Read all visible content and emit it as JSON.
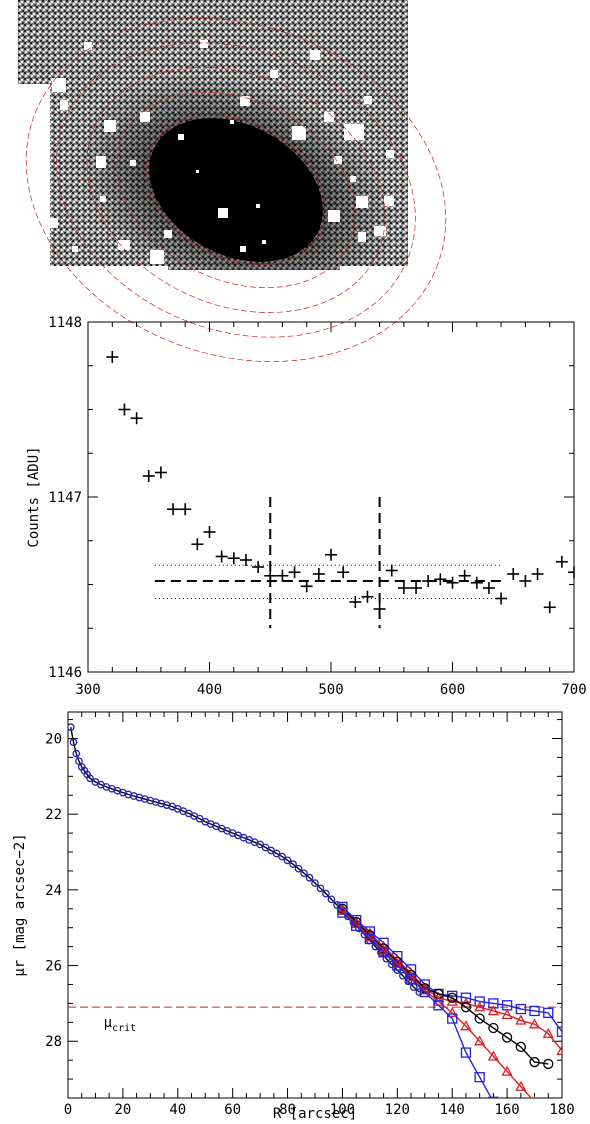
{
  "figure": {
    "image_panel": {
      "description_name": "galaxy-image",
      "mask_color": "#ffffff",
      "galaxy_color": "#000000",
      "ellipse_color": "#cc2222"
    }
  },
  "chart_data": [
    {
      "type": "scatter",
      "title": "",
      "xlabel": "",
      "ylabel": "Counts [ADU]",
      "xlim": [
        300,
        700
      ],
      "ylim": [
        1146,
        1148
      ],
      "x_ticks": [
        300,
        400,
        500,
        600,
        700
      ],
      "y_ticks": [
        1146,
        1147,
        1148
      ],
      "grid": false,
      "marker": "plus",
      "series": [
        {
          "name": "",
          "points": [
            [
              320,
              1147.8
            ],
            [
              330,
              1147.5
            ],
            [
              340,
              1147.45
            ],
            [
              350,
              1147.12
            ],
            [
              360,
              1147.14
            ],
            [
              370,
              1146.93
            ],
            [
              380,
              1146.93
            ],
            [
              390,
              1146.73
            ],
            [
              400,
              1146.8
            ],
            [
              410,
              1146.66
            ],
            [
              420,
              1146.65
            ],
            [
              430,
              1146.64
            ],
            [
              440,
              1146.6
            ],
            [
              450,
              1146.55
            ],
            [
              460,
              1146.55
            ],
            [
              470,
              1146.57
            ],
            [
              480,
              1146.49
            ],
            [
              490,
              1146.56
            ],
            [
              500,
              1146.67
            ],
            [
              510,
              1146.57
            ],
            [
              520,
              1146.4
            ],
            [
              530,
              1146.43
            ],
            [
              540,
              1146.36
            ],
            [
              550,
              1146.58
            ],
            [
              560,
              1146.48
            ],
            [
              570,
              1146.48
            ],
            [
              580,
              1146.52
            ],
            [
              590,
              1146.53
            ],
            [
              600,
              1146.51
            ],
            [
              610,
              1146.55
            ],
            [
              620,
              1146.51
            ],
            [
              630,
              1146.48
            ],
            [
              640,
              1146.42
            ],
            [
              650,
              1146.56
            ],
            [
              660,
              1146.52
            ],
            [
              670,
              1146.56
            ],
            [
              680,
              1146.37
            ],
            [
              690,
              1146.63
            ],
            [
              700,
              1146.57
            ]
          ]
        }
      ],
      "reference_lines": {
        "sky_level": 1146.52,
        "sky_lower": 1146.42,
        "sky_upper": 1146.61,
        "sky_range_x": [
          355,
          640
        ],
        "vertical_x": [
          450,
          540
        ],
        "vertical_y_range": [
          1146.25,
          1147.0
        ]
      }
    },
    {
      "type": "line",
      "title": "",
      "xlabel": "R [arcsec]",
      "ylabel": "μr [mag arcsec−2]",
      "xlim": [
        0,
        180
      ],
      "ylim": [
        29.5,
        19.3
      ],
      "y_inverted": true,
      "x_ticks": [
        0,
        20,
        40,
        60,
        80,
        100,
        120,
        140,
        160,
        180
      ],
      "y_ticks": [
        20,
        22,
        24,
        26,
        28
      ],
      "grid": false,
      "critical_level": {
        "value": 27.1,
        "label_main": "μ",
        "label_sub": "crit",
        "color": "#cc2222"
      },
      "series": [
        {
          "name": "",
          "role": "profile-dense",
          "color": "#000000",
          "marker": "circle",
          "x": [
            1,
            2,
            3,
            4,
            5,
            6,
            7,
            8,
            10,
            12,
            14,
            16,
            18,
            20,
            22,
            24,
            26,
            28,
            30,
            32,
            34,
            36,
            38,
            40,
            42,
            44,
            46,
            48,
            50,
            52,
            54,
            56,
            58,
            60,
            62,
            64,
            66,
            68,
            70,
            72,
            74,
            76,
            78,
            80,
            82,
            84,
            86,
            88,
            90,
            92,
            94,
            96,
            98,
            100,
            102,
            104,
            106,
            108,
            110,
            112,
            114,
            116,
            118,
            120,
            122,
            124,
            126,
            128
          ],
          "y": [
            19.7,
            20.1,
            20.4,
            20.6,
            20.75,
            20.85,
            20.95,
            21.05,
            21.15,
            21.22,
            21.28,
            21.33,
            21.38,
            21.43,
            21.48,
            21.52,
            21.56,
            21.6,
            21.64,
            21.68,
            21.72,
            21.76,
            21.8,
            21.86,
            21.92,
            21.98,
            22.05,
            22.12,
            22.2,
            22.26,
            22.32,
            22.38,
            22.44,
            22.5,
            22.56,
            22.62,
            22.68,
            22.74,
            22.8,
            22.88,
            22.96,
            23.04,
            23.12,
            23.22,
            23.32,
            23.44,
            23.56,
            23.68,
            23.82,
            23.96,
            24.1,
            24.25,
            24.4,
            24.55,
            24.7,
            24.86,
            25.02,
            25.18,
            25.34,
            25.5,
            25.66,
            25.82,
            25.97,
            26.12,
            26.27,
            26.42,
            26.57,
            26.7
          ]
        },
        {
          "name": "",
          "role": "upper-blue",
          "color": "#2222dd",
          "marker": "square",
          "x": [
            100,
            105,
            110,
            115,
            120,
            125,
            130,
            135,
            140,
            145,
            150,
            155,
            160,
            165,
            170,
            175,
            180
          ],
          "y": [
            24.45,
            24.8,
            25.1,
            25.4,
            25.75,
            26.1,
            26.5,
            26.75,
            26.8,
            26.85,
            26.95,
            27.0,
            27.05,
            27.15,
            27.2,
            27.25,
            27.75
          ]
        },
        {
          "name": "",
          "role": "upper-red",
          "color": "#dd2222",
          "marker": "triangle",
          "x": [
            100,
            105,
            110,
            115,
            120,
            125,
            130,
            135,
            140,
            145,
            150,
            155,
            160,
            165,
            170,
            175,
            180
          ],
          "y": [
            24.5,
            24.85,
            25.15,
            25.5,
            25.85,
            26.2,
            26.6,
            26.85,
            26.95,
            27.0,
            27.1,
            27.2,
            27.3,
            27.45,
            27.55,
            27.8,
            28.25
          ]
        },
        {
          "name": "",
          "role": "profile",
          "color": "#000000",
          "marker": "circle",
          "x": [
            100,
            105,
            110,
            115,
            120,
            125,
            130,
            135,
            140,
            145,
            150,
            155,
            160,
            165,
            170,
            175
          ],
          "y": [
            24.5,
            24.85,
            25.2,
            25.55,
            25.9,
            26.25,
            26.6,
            26.75,
            26.85,
            27.1,
            27.4,
            27.65,
            27.9,
            28.15,
            28.55,
            28.6
          ]
        },
        {
          "name": "",
          "role": "lower-red",
          "color": "#dd2222",
          "marker": "triangle",
          "x": [
            100,
            105,
            110,
            115,
            120,
            125,
            130,
            135,
            140,
            145,
            150,
            155,
            160,
            165,
            170
          ],
          "y": [
            24.55,
            24.9,
            25.25,
            25.6,
            25.95,
            26.3,
            26.65,
            26.95,
            27.25,
            27.6,
            28.0,
            28.4,
            28.8,
            29.2,
            29.6
          ]
        },
        {
          "name": "",
          "role": "lower-blue",
          "color": "#2222dd",
          "marker": "square",
          "x": [
            100,
            105,
            110,
            115,
            120,
            125,
            130,
            135,
            140,
            145,
            150,
            155
          ],
          "y": [
            24.6,
            24.95,
            25.3,
            25.65,
            26.0,
            26.35,
            26.7,
            27.05,
            27.4,
            28.3,
            28.95,
            29.6
          ]
        }
      ]
    }
  ]
}
